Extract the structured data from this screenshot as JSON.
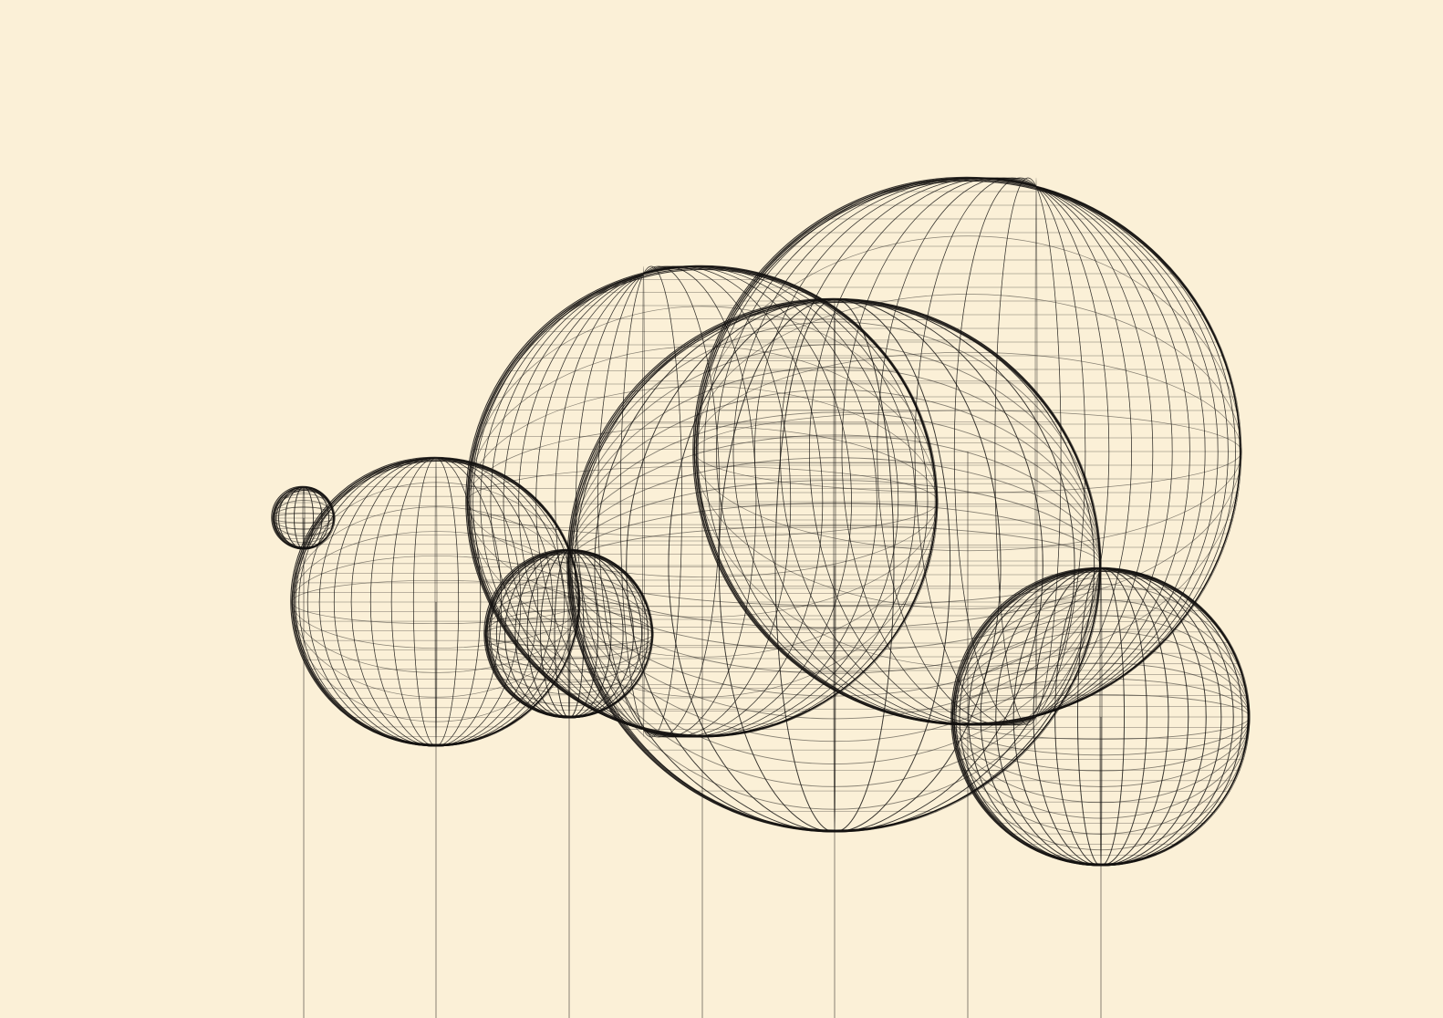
{
  "artwork": {
    "background_color": "#fbf0d7",
    "ink_color": "#141210",
    "stem_color": "#3a3530",
    "motif": "wireframe-spheres-on-stems"
  }
}
